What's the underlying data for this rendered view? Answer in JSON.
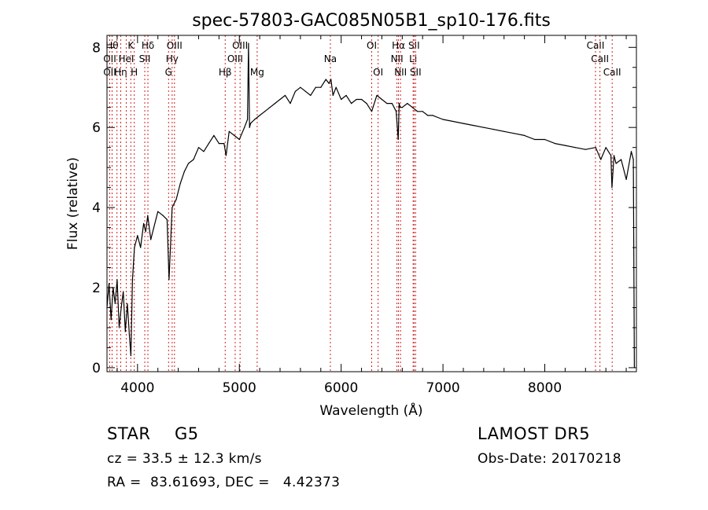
{
  "chart_data": {
    "type": "line",
    "title": "spec-57803-GAC085N05B1_sp10-176.fits",
    "xlabel": "Wavelength (Å)",
    "ylabel": "Flux (relative)",
    "xlim": [
      3700,
      8900
    ],
    "ylim": [
      -0.1,
      8.3
    ],
    "xticks": [
      4000,
      5000,
      6000,
      7000,
      8000
    ],
    "xtick_labels": [
      "4000",
      "5000",
      "6000",
      "7000",
      "8000"
    ],
    "yticks": [
      0,
      2,
      4,
      6,
      8
    ],
    "ytick_labels": [
      "0",
      "2",
      "4",
      "6",
      "8"
    ],
    "grid": false,
    "line_color": "#000000",
    "marker_color": "#cc2222",
    "series": [
      {
        "x": [
          3700,
          3720,
          3740,
          3760,
          3780,
          3800,
          3820,
          3840,
          3860,
          3880,
          3900,
          3920,
          3935,
          3950,
          3970,
          4000,
          4030,
          4060,
          4080,
          4100,
          4130,
          4160,
          4200,
          4250,
          4290,
          4310,
          4340,
          4380,
          4420,
          4460,
          4500,
          4550,
          4600,
          4650,
          4700,
          4750,
          4800,
          4850,
          4870,
          4900,
          4950,
          5000,
          5050,
          5080,
          5090,
          5100,
          5110,
          5150,
          5200,
          5250,
          5300,
          5350,
          5400,
          5450,
          5500,
          5550,
          5600,
          5650,
          5700,
          5750,
          5800,
          5850,
          5880,
          5900,
          5920,
          5950,
          6000,
          6050,
          6100,
          6150,
          6200,
          6250,
          6300,
          6350,
          6400,
          6450,
          6500,
          6540,
          6560,
          6570,
          6580,
          6600,
          6650,
          6700,
          6750,
          6800,
          6850,
          6900,
          6950,
          7000,
          7100,
          7200,
          7300,
          7400,
          7500,
          7600,
          7700,
          7800,
          7900,
          8000,
          8100,
          8200,
          8300,
          8400,
          8500,
          8550,
          8600,
          8650,
          8660,
          8680,
          8700,
          8750,
          8800,
          8850,
          8870,
          8880
        ],
        "y": [
          1.5,
          2.1,
          1.2,
          2.0,
          1.6,
          2.2,
          1.0,
          1.5,
          1.9,
          0.9,
          1.6,
          0.8,
          0.3,
          2.2,
          3.0,
          3.3,
          3.0,
          3.6,
          3.4,
          3.8,
          3.2,
          3.5,
          3.9,
          3.8,
          3.7,
          2.2,
          4.0,
          4.2,
          4.6,
          4.9,
          5.1,
          5.2,
          5.5,
          5.4,
          5.6,
          5.8,
          5.6,
          5.6,
          5.3,
          5.9,
          5.8,
          5.7,
          6.0,
          6.2,
          8.1,
          6.0,
          6.1,
          6.2,
          6.3,
          6.4,
          6.5,
          6.6,
          6.7,
          6.8,
          6.6,
          6.9,
          7.0,
          6.9,
          6.8,
          7.0,
          7.0,
          7.2,
          7.1,
          7.2,
          6.8,
          7.0,
          6.7,
          6.8,
          6.6,
          6.7,
          6.7,
          6.6,
          6.4,
          6.8,
          6.7,
          6.6,
          6.6,
          6.4,
          5.7,
          6.6,
          6.5,
          6.5,
          6.6,
          6.5,
          6.4,
          6.4,
          6.3,
          6.3,
          6.25,
          6.2,
          6.15,
          6.1,
          6.05,
          6.0,
          5.95,
          5.9,
          5.85,
          5.8,
          5.7,
          5.7,
          5.6,
          5.55,
          5.5,
          5.45,
          5.5,
          5.2,
          5.5,
          5.3,
          4.5,
          5.3,
          5.1,
          5.2,
          4.7,
          5.4,
          5.2,
          0.0
        ]
      }
    ],
    "line_markers": [
      {
        "x": 3750,
        "labels": [
          "Hθ"
        ],
        "row": 1
      },
      {
        "x": 3727,
        "labels": [
          "OII"
        ],
        "row": 2
      },
      {
        "x": 3727,
        "labels": [
          "OII"
        ],
        "row": 3
      },
      {
        "x": 3798,
        "labels": [],
        "row": 0
      },
      {
        "x": 3835,
        "labels": [
          "Hη"
        ],
        "row": 3
      },
      {
        "x": 3889,
        "labels": [
          "HeI"
        ],
        "row": 2
      },
      {
        "x": 3934,
        "labels": [
          "K"
        ],
        "row": 1
      },
      {
        "x": 3968,
        "labels": [
          "H"
        ],
        "row": 3
      },
      {
        "x": 4071,
        "labels": [
          "SII"
        ],
        "row": 2
      },
      {
        "x": 4102,
        "labels": [
          "Hδ"
        ],
        "row": 1
      },
      {
        "x": 4305,
        "labels": [
          "G"
        ],
        "row": 3
      },
      {
        "x": 4340,
        "labels": [
          "Hγ"
        ],
        "row": 2
      },
      {
        "x": 4363,
        "labels": [
          "OIII"
        ],
        "row": 1
      },
      {
        "x": 4861,
        "labels": [
          "Hβ"
        ],
        "row": 3
      },
      {
        "x": 4959,
        "labels": [
          "OIII"
        ],
        "row": 2
      },
      {
        "x": 5007,
        "labels": [
          "OIII"
        ],
        "row": 1
      },
      {
        "x": 5175,
        "labels": [
          "Mg"
        ],
        "row": 3
      },
      {
        "x": 5894,
        "labels": [
          "Na"
        ],
        "row": 2
      },
      {
        "x": 6300,
        "labels": [
          "OI"
        ],
        "row": 1
      },
      {
        "x": 6363,
        "labels": [
          "OI"
        ],
        "row": 3
      },
      {
        "x": 6548,
        "labels": [
          "NII"
        ],
        "row": 2
      },
      {
        "x": 6563,
        "labels": [
          "Hα"
        ],
        "row": 1
      },
      {
        "x": 6583,
        "labels": [
          "NII"
        ],
        "row": 3
      },
      {
        "x": 6707,
        "labels": [
          "Li"
        ],
        "row": 2
      },
      {
        "x": 6716,
        "labels": [
          "SII"
        ],
        "row": 1
      },
      {
        "x": 6731,
        "labels": [
          "SII"
        ],
        "row": 3
      },
      {
        "x": 8498,
        "labels": [
          "CaII"
        ],
        "row": 1
      },
      {
        "x": 8542,
        "labels": [
          "CaII"
        ],
        "row": 2
      },
      {
        "x": 8662,
        "labels": [
          "CaII"
        ],
        "row": 3
      }
    ]
  },
  "info": {
    "object_class": "STAR",
    "subclass": "G5",
    "survey": "LAMOST DR5",
    "cz": "cz = 33.5 ± 12.3 km/s",
    "obs_date": "Obs-Date: 20170218",
    "coords": "RA =  83.61693, DEC =   4.42373"
  }
}
